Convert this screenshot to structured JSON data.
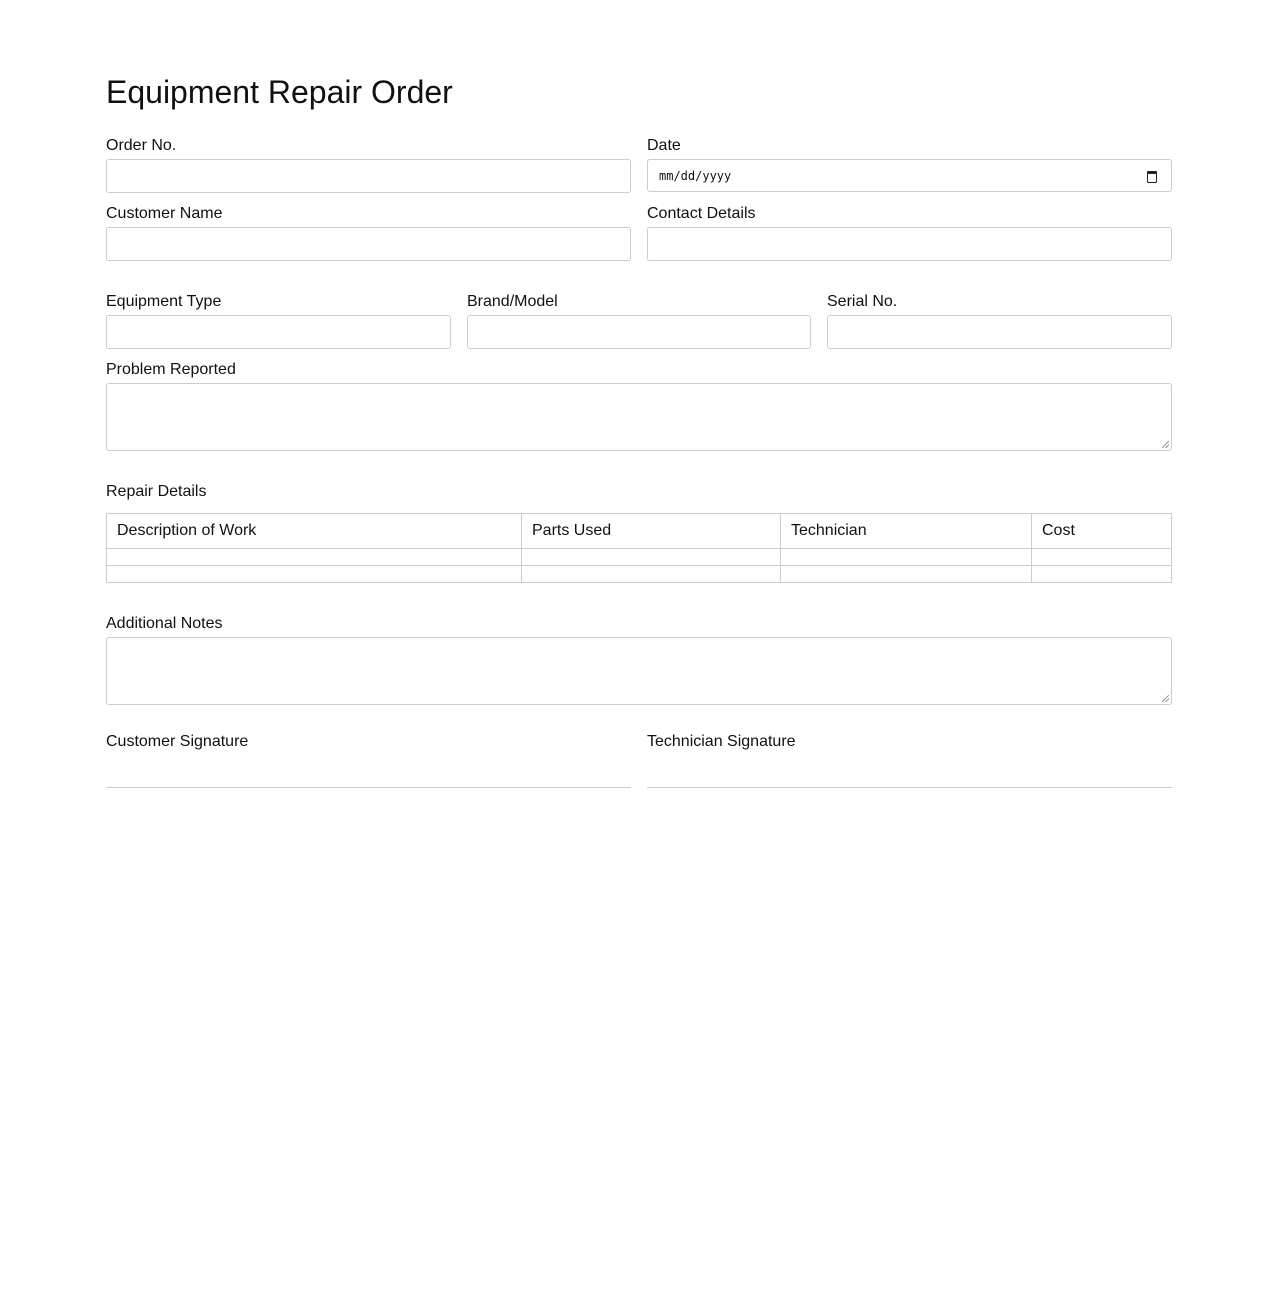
{
  "title": "Equipment Repair Order",
  "fields": {
    "order_no": "Order No.",
    "date": "Date",
    "date_placeholder": "mm/dd/yyyy",
    "customer_name": "Customer Name",
    "contact_details": "Contact Details",
    "equipment_type": "Equipment Type",
    "brand_model": "Brand/Model",
    "serial_no": "Serial No.",
    "problem_reported": "Problem Reported"
  },
  "repair": {
    "label": "Repair Details",
    "columns": [
      "Description of Work",
      "Parts Used",
      "Technician",
      "Cost"
    ],
    "rows": [
      [
        "",
        "",
        "",
        ""
      ],
      [
        "",
        "",
        "",
        ""
      ]
    ]
  },
  "notes": {
    "label": "Additional Notes"
  },
  "signatures": {
    "customer": "Customer Signature",
    "technician": "Technician Signature"
  }
}
